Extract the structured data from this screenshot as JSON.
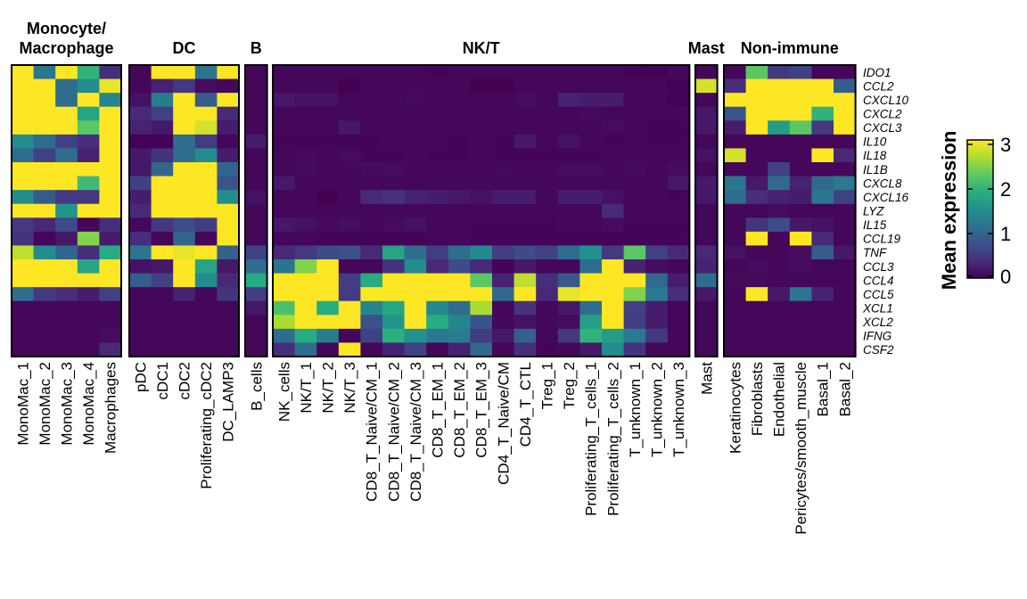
{
  "chart_data": {
    "type": "heatmap",
    "title": "",
    "colormap": "viridis",
    "legend": {
      "title": "Mean expression",
      "ticks": [
        "0",
        "1",
        "2",
        "3"
      ],
      "range": [
        0,
        3.1
      ],
      "placement": "right"
    },
    "genes": [
      "IDO1",
      "CCL2",
      "CXCL10",
      "CXCL2",
      "CXCL3",
      "IL10",
      "IL18",
      "IL1B",
      "CXCL8",
      "CXCL16",
      "LYZ",
      "IL15",
      "CCL19",
      "TNF",
      "CCL3",
      "CCL4",
      "CCL5",
      "XCL1",
      "XCL2",
      "IFNG",
      "CSF2"
    ],
    "groups": [
      {
        "name": "Monocyte/\nMacrophage",
        "title_lines": [
          "Monocyte/",
          "Macrophage"
        ],
        "columns": [
          "MonoMac_1",
          "MonoMac_2",
          "MonoMac_3",
          "MonoMac_4",
          "Macrophages"
        ],
        "values": [
          [
            3.1,
            1.2,
            3.1,
            2.0,
            0.4
          ],
          [
            3.1,
            3.1,
            1.1,
            1.5,
            3.0
          ],
          [
            3.1,
            3.1,
            1.1,
            3.1,
            1.4
          ],
          [
            3.1,
            3.1,
            3.1,
            1.8,
            3.1
          ],
          [
            3.1,
            3.1,
            3.1,
            2.3,
            3.1
          ],
          [
            1.5,
            1.1,
            0.6,
            0.4,
            3.1
          ],
          [
            1.1,
            0.6,
            1.1,
            0.3,
            3.1
          ],
          [
            3.1,
            3.1,
            3.1,
            3.1,
            3.1
          ],
          [
            3.1,
            3.1,
            3.1,
            2.1,
            3.1
          ],
          [
            1.5,
            0.9,
            0.5,
            0.5,
            3.1
          ],
          [
            3.1,
            3.1,
            1.6,
            3.1,
            3.1
          ],
          [
            0.5,
            0.35,
            0.7,
            0.05,
            0.4
          ],
          [
            0.45,
            0.05,
            0.2,
            2.5,
            0.25
          ],
          [
            2.8,
            1.5,
            1.0,
            0.4,
            1.9
          ],
          [
            3.1,
            3.1,
            3.1,
            1.8,
            3.1
          ],
          [
            3.1,
            3.1,
            3.1,
            3.1,
            3.1
          ],
          [
            1.1,
            0.5,
            0.4,
            0.25,
            0.6
          ],
          [
            0.05,
            0.05,
            0.05,
            0.05,
            0.05
          ],
          [
            0.05,
            0.05,
            0.05,
            0.05,
            0.05
          ],
          [
            0.05,
            0.05,
            0.05,
            0.05,
            0.1
          ],
          [
            0.05,
            0.05,
            0.05,
            0.05,
            0.35
          ]
        ]
      },
      {
        "name": "DC",
        "title_lines": [
          "DC"
        ],
        "columns": [
          "pDC",
          "cDC1",
          "cDC2",
          "Proliferating_cDC2",
          "DC_LAMP3"
        ],
        "values": [
          [
            0.05,
            3.1,
            3.1,
            1.2,
            3.1
          ],
          [
            0.05,
            0.3,
            0.5,
            0.1,
            0.05
          ],
          [
            0.15,
            1.3,
            3.1,
            0.9,
            3.1
          ],
          [
            0.35,
            0.6,
            3.1,
            3.1,
            0.35
          ],
          [
            0.3,
            0.2,
            3.1,
            2.9,
            0.25
          ],
          [
            0.02,
            0.02,
            1.1,
            0.55,
            0.05
          ],
          [
            0.2,
            0.45,
            1.1,
            1.5,
            0.25
          ],
          [
            0.2,
            1.0,
            3.1,
            3.1,
            1.0
          ],
          [
            0.6,
            3.1,
            3.1,
            3.1,
            0.8
          ],
          [
            0.25,
            3.1,
            3.1,
            3.1,
            1.5
          ],
          [
            0.35,
            3.1,
            3.1,
            3.1,
            3.1
          ],
          [
            0.05,
            0.5,
            0.7,
            0.55,
            3.1
          ],
          [
            0.4,
            0.05,
            1.0,
            0.05,
            3.1
          ],
          [
            1.2,
            3.1,
            3.0,
            3.1,
            0.95
          ],
          [
            0.15,
            0.2,
            3.1,
            1.8,
            0.2
          ],
          [
            0.9,
            0.6,
            3.1,
            1.5,
            0.35
          ],
          [
            0.05,
            0.05,
            0.3,
            0.05,
            0.45
          ],
          [
            0.05,
            0.05,
            0.05,
            0.05,
            0.05
          ],
          [
            0.05,
            0.05,
            0.05,
            0.05,
            0.05
          ],
          [
            0.05,
            0.05,
            0.05,
            0.05,
            0.05
          ],
          [
            0.05,
            0.05,
            0.05,
            0.05,
            0.05
          ]
        ]
      },
      {
        "name": "B",
        "title_lines": [
          "B"
        ],
        "columns": [
          "B_cells"
        ],
        "values": [
          [
            0.05
          ],
          [
            0.05
          ],
          [
            0.05
          ],
          [
            0.05
          ],
          [
            0.05
          ],
          [
            0.25
          ],
          [
            0.05
          ],
          [
            0.05
          ],
          [
            0.05
          ],
          [
            0.15
          ],
          [
            0.05
          ],
          [
            0.05
          ],
          [
            0.05
          ],
          [
            0.6
          ],
          [
            1.1
          ],
          [
            1.9
          ],
          [
            0.55
          ],
          [
            0.2
          ],
          [
            0.05
          ],
          [
            0.05
          ],
          [
            0.05
          ]
        ]
      },
      {
        "name": "NK/T",
        "title_lines": [
          "NK/T"
        ],
        "columns": [
          "NK_cells",
          "NK/T_1",
          "NK/T_2",
          "NK/T_3",
          "CD8_T_Naive/CM_1",
          "CD8_T_Naive/CM_2",
          "CD8_T_Naive/CM_3",
          "CD8_T_EM_1",
          "CD8_T_EM_2",
          "CD8_T_EM_3",
          "CD4_T_Naive/CM",
          "CD4_T_CTL",
          "Treg_1",
          "Treg_2",
          "Proliferating_T_cells_1",
          "Proliferating_T_cells_2",
          "T_unknown_1",
          "T_unknown_2",
          "T_unknown_3"
        ],
        "values": [
          [
            0.05,
            0.05,
            0.05,
            0.05,
            0.05,
            0.05,
            0.05,
            0.02,
            0.05,
            0.05,
            0.05,
            0.05,
            0.05,
            0.05,
            0.05,
            0.05,
            0.02,
            0.02,
            0.05
          ],
          [
            0.05,
            0.05,
            0.05,
            0.0,
            0.05,
            0.05,
            0.05,
            0.05,
            0.05,
            0.0,
            0.0,
            0.05,
            0.05,
            0.05,
            0.05,
            0.05,
            0.05,
            0.05,
            0.02
          ],
          [
            0.2,
            0.15,
            0.15,
            0.05,
            0.05,
            0.05,
            0.08,
            0.05,
            0.05,
            0.05,
            0.05,
            0.1,
            0.05,
            0.3,
            0.25,
            0.25,
            0.05,
            0.05,
            0.02
          ],
          [
            0.05,
            0.05,
            0.05,
            0.05,
            0.05,
            0.05,
            0.05,
            0.05,
            0.05,
            0.05,
            0.05,
            0.05,
            0.05,
            0.05,
            0.08,
            0.05,
            0.05,
            0.05,
            0.05
          ],
          [
            0.05,
            0.05,
            0.05,
            0.2,
            0.05,
            0.05,
            0.05,
            0.05,
            0.05,
            0.05,
            0.05,
            0.05,
            0.05,
            0.05,
            0.05,
            0.1,
            0.05,
            0.03,
            0.03
          ],
          [
            0.03,
            0.03,
            0.03,
            0.03,
            0.03,
            0.05,
            0.05,
            0.05,
            0.03,
            0.05,
            0.03,
            0.2,
            0.05,
            0.15,
            0.05,
            0.03,
            0.05,
            0.03,
            0.03
          ],
          [
            0.05,
            0.08,
            0.05,
            0.1,
            0.03,
            0.03,
            0.05,
            0.03,
            0.03,
            0.05,
            0.03,
            0.03,
            0.03,
            0.03,
            0.03,
            0.05,
            0.05,
            0.05,
            0.05
          ],
          [
            0.05,
            0.08,
            0.05,
            0.05,
            0.08,
            0.1,
            0.05,
            0.05,
            0.05,
            0.05,
            0.07,
            0.05,
            0.05,
            0.1,
            0.1,
            0.05,
            0.08,
            0.05,
            0.1
          ],
          [
            0.2,
            0.05,
            0.05,
            0.05,
            0.05,
            0.05,
            0.05,
            0.05,
            0.05,
            0.05,
            0.05,
            0.05,
            0.05,
            0.05,
            0.05,
            0.05,
            0.05,
            0.05,
            0.2
          ],
          [
            0.05,
            0.05,
            0.0,
            0.05,
            0.35,
            0.45,
            0.3,
            0.25,
            0.2,
            0.15,
            0.25,
            0.25,
            0.05,
            0.25,
            0.25,
            0.15,
            0.05,
            0.05,
            0.03
          ],
          [
            0.05,
            0.05,
            0.05,
            0.05,
            0.05,
            0.05,
            0.05,
            0.05,
            0.05,
            0.05,
            0.05,
            0.05,
            0.05,
            0.05,
            0.05,
            0.35,
            0.05,
            0.05,
            0.05
          ],
          [
            0.2,
            0.15,
            0.08,
            0.12,
            0.05,
            0.1,
            0.15,
            0.05,
            0.05,
            0.03,
            0.03,
            0.03,
            0.03,
            0.05,
            0.05,
            0.1,
            0.03,
            0.03,
            0.03
          ],
          [
            0.05,
            0.05,
            0.03,
            0.03,
            0.03,
            0.03,
            0.03,
            0.05,
            0.05,
            0.03,
            0.03,
            0.03,
            0.03,
            0.03,
            0.03,
            0.03,
            0.03,
            0.03,
            0.03
          ],
          [
            0.35,
            0.5,
            0.7,
            0.75,
            0.35,
            1.8,
            1.1,
            0.55,
            1.1,
            1.45,
            0.55,
            0.7,
            0.6,
            1.1,
            1.55,
            0.5,
            2.3,
            0.6,
            0.35
          ],
          [
            1.2,
            2.5,
            3.1,
            0.05,
            0.05,
            0.45,
            1.5,
            0.35,
            0.7,
            0.35,
            0.03,
            0.2,
            0.05,
            0.05,
            1.1,
            3.1,
            0.3,
            0.1,
            0.05
          ],
          [
            3.1,
            3.1,
            3.1,
            0.55,
            1.9,
            3.1,
            3.1,
            3.1,
            3.1,
            2.3,
            0.3,
            2.8,
            0.4,
            0.85,
            3.1,
            3.1,
            3.1,
            1.05,
            0.25
          ],
          [
            3.1,
            3.1,
            3.1,
            0.55,
            3.1,
            3.1,
            3.1,
            3.1,
            3.1,
            3.1,
            1.05,
            3.1,
            0.35,
            3.0,
            3.1,
            3.1,
            2.5,
            1.25,
            0.4
          ],
          [
            2.2,
            3.1,
            1.9,
            3.1,
            1.4,
            1.85,
            3.1,
            1.45,
            1.1,
            2.7,
            0.05,
            0.45,
            0.05,
            0.2,
            1.1,
            3.1,
            0.6,
            0.25,
            0.05
          ],
          [
            2.7,
            3.1,
            3.1,
            3.1,
            0.75,
            1.6,
            3.1,
            1.9,
            1.4,
            0.8,
            0.05,
            0.15,
            0.05,
            0.1,
            1.75,
            3.1,
            0.55,
            0.25,
            0.05
          ],
          [
            1.1,
            1.9,
            1.3,
            0.05,
            0.6,
            1.95,
            1.55,
            1.25,
            1.3,
            0.55,
            0.2,
            0.95,
            0.05,
            0.5,
            2.0,
            1.7,
            1.25,
            0.5,
            0.05
          ],
          [
            0.4,
            1.1,
            0.05,
            3.1,
            0.05,
            0.3,
            0.6,
            0.05,
            0.3,
            1.05,
            0.05,
            0.4,
            0.03,
            0.05,
            0.2,
            1.5,
            0.45,
            0.05,
            0.05
          ]
        ]
      },
      {
        "name": "Mast",
        "title_lines": [
          "Mast"
        ],
        "columns": [
          "Mast"
        ],
        "values": [
          [
            0.05
          ],
          [
            2.9
          ],
          [
            0.05
          ],
          [
            0.2
          ],
          [
            0.2
          ],
          [
            0.05
          ],
          [
            0.15
          ],
          [
            0.05
          ],
          [
            0.2
          ],
          [
            0.2
          ],
          [
            0.05
          ],
          [
            0.05
          ],
          [
            0.05
          ],
          [
            0.35
          ],
          [
            0.3
          ],
          [
            1.1
          ],
          [
            0.2
          ],
          [
            0.05
          ],
          [
            0.05
          ],
          [
            0.05
          ],
          [
            0.05
          ]
        ]
      },
      {
        "name": "Non-immune",
        "title_lines": [
          "Non-immune"
        ],
        "columns": [
          "Keratinocytes",
          "Fibroblasts",
          "Endothelial",
          "Pericytes/smooth_muscle",
          "Basal_1",
          "Basal_2"
        ],
        "values": [
          [
            0.05,
            2.3,
            0.5,
            0.6,
            0.05,
            0.05
          ],
          [
            0.4,
            3.1,
            3.1,
            3.1,
            3.1,
            0.9
          ],
          [
            3.1,
            3.1,
            3.1,
            3.1,
            3.1,
            3.1
          ],
          [
            0.8,
            3.1,
            3.1,
            3.1,
            2.0,
            3.1
          ],
          [
            0.25,
            3.1,
            1.7,
            2.3,
            0.5,
            3.1
          ],
          [
            0.05,
            0.05,
            0.05,
            0.05,
            0.05,
            0.05
          ],
          [
            2.9,
            0.05,
            0.05,
            0.05,
            3.1,
            0.35
          ],
          [
            0.05,
            0.05,
            0.6,
            0.05,
            0.05,
            0.05
          ],
          [
            1.2,
            0.2,
            1.05,
            0.3,
            1.05,
            1.25
          ],
          [
            1.1,
            0.4,
            0.3,
            0.25,
            1.2,
            0.6
          ],
          [
            0.05,
            0.05,
            0.1,
            0.05,
            0.05,
            0.05
          ],
          [
            0.05,
            0.45,
            0.7,
            0.2,
            0.15,
            0.05
          ],
          [
            0.05,
            3.1,
            0.05,
            3.1,
            0.35,
            0.05
          ],
          [
            0.15,
            0.05,
            0.05,
            0.1,
            0.9,
            0.2
          ],
          [
            0.05,
            0.1,
            0.05,
            0.1,
            0.05,
            0.05
          ],
          [
            0.08,
            0.08,
            0.05,
            0.05,
            0.05,
            0.05
          ],
          [
            0.05,
            3.1,
            0.2,
            1.2,
            0.3,
            0.05
          ],
          [
            0.05,
            0.05,
            0.05,
            0.05,
            0.05,
            0.05
          ],
          [
            0.05,
            0.05,
            0.05,
            0.05,
            0.05,
            0.05
          ],
          [
            0.05,
            0.05,
            0.05,
            0.05,
            0.05,
            0.05
          ],
          [
            0.05,
            0.05,
            0.05,
            0.05,
            0.05,
            0.05
          ]
        ]
      }
    ]
  }
}
